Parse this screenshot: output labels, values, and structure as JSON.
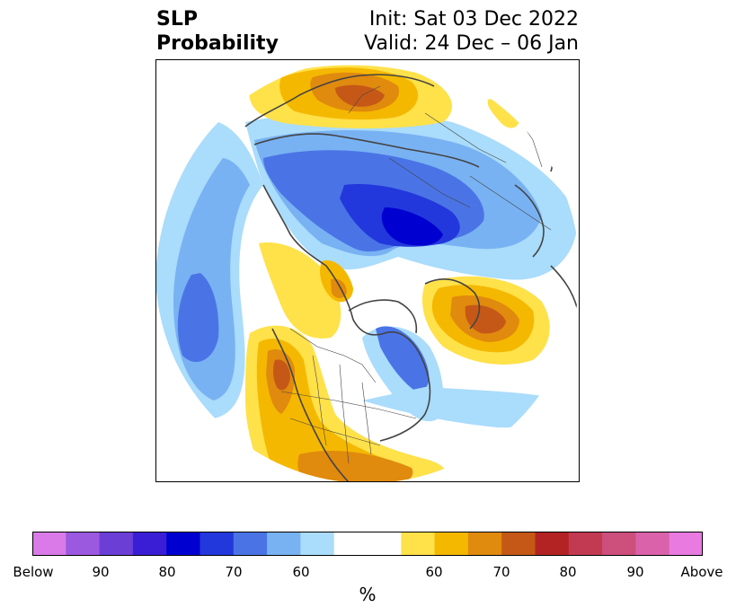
{
  "title": {
    "left_line1": "SLP",
    "left_line2": "Probability",
    "right_line1": "Init: Sat 03 Dec 2022",
    "right_line2": "Valid: 24 Dec – 06 Jan"
  },
  "colorbar": {
    "unit": "%",
    "colors": [
      "#d97ae8",
      "#9b59e0",
      "#6b3fd6",
      "#3a1ed6",
      "#0000d0",
      "#2238dc",
      "#4a74e6",
      "#78b2f2",
      "#aadcfb",
      "#ffffff",
      "#ffe14a",
      "#f5b800",
      "#e08a0e",
      "#c55817",
      "#b42323",
      "#c23a51",
      "#cd4f7c",
      "#da62aa",
      "#e87ae0"
    ],
    "tick_labels": [
      "Below",
      "90",
      "80",
      "70",
      "60",
      "60",
      "70",
      "80",
      "90",
      "Above"
    ]
  },
  "map": {
    "projection": "north-polar-stereographic",
    "features": [
      "coastlines",
      "country-borders",
      "state-borders"
    ]
  }
}
